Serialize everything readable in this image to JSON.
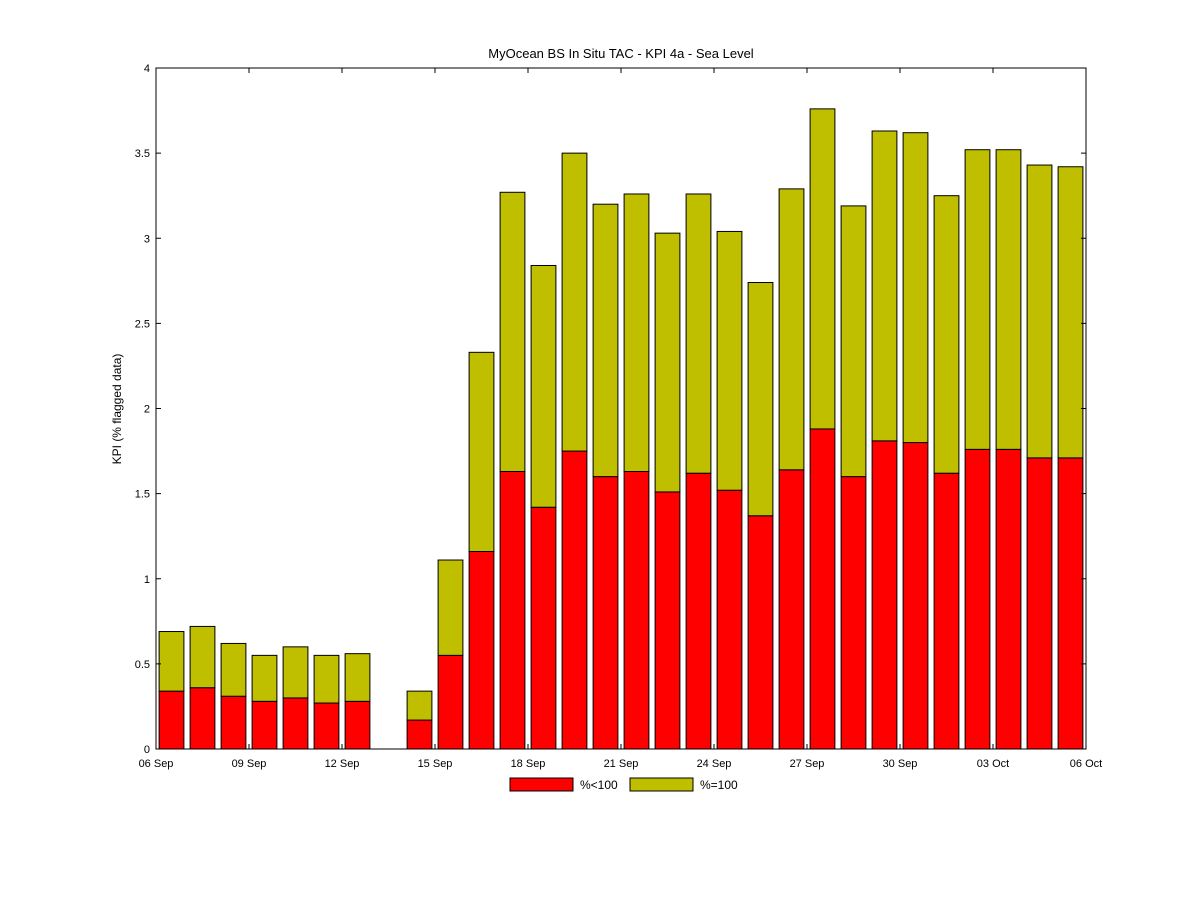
{
  "chart_data": {
    "type": "bar",
    "stacked": true,
    "title": "MyOcean  BS In Situ TAC - KPI 4a - Sea Level",
    "xlabel": "",
    "ylabel": "KPI (% flagged data)",
    "x_range": [
      "2011-09-06",
      "2011-10-06"
    ],
    "ylim": [
      0,
      4
    ],
    "y_ticks": [
      "0",
      "0.5",
      "1",
      "1.5",
      "2",
      "2.5",
      "3",
      "3.5",
      "4"
    ],
    "x_ticks": [
      {
        "date": "2011-09-06",
        "label": "06 Sep"
      },
      {
        "date": "2011-09-09",
        "label": "09 Sep"
      },
      {
        "date": "2011-09-12",
        "label": "12 Sep"
      },
      {
        "date": "2011-09-15",
        "label": "15 Sep"
      },
      {
        "date": "2011-09-18",
        "label": "18 Sep"
      },
      {
        "date": "2011-09-21",
        "label": "21 Sep"
      },
      {
        "date": "2011-09-24",
        "label": "24 Sep"
      },
      {
        "date": "2011-09-27",
        "label": "27 Sep"
      },
      {
        "date": "2011-09-30",
        "label": "30 Sep"
      },
      {
        "date": "2011-10-03",
        "label": "03 Oct"
      },
      {
        "date": "2011-10-06",
        "label": "06 Oct"
      }
    ],
    "grid": false,
    "legend_position": "bottom-center",
    "x": [
      "2011-09-07",
      "2011-09-08",
      "2011-09-09",
      "2011-09-10",
      "2011-09-11",
      "2011-09-12",
      "2011-09-13",
      "2011-09-14",
      "2011-09-15",
      "2011-09-16",
      "2011-09-17",
      "2011-09-18",
      "2011-09-19",
      "2011-09-20",
      "2011-09-21",
      "2011-09-22",
      "2011-09-23",
      "2011-09-24",
      "2011-09-25",
      "2011-09-26",
      "2011-09-27",
      "2011-09-28",
      "2011-09-29",
      "2011-09-30",
      "2011-10-01",
      "2011-10-02",
      "2011-10-03",
      "2011-10-04",
      "2011-10-05",
      "2011-10-06"
    ],
    "series": [
      {
        "name": "%<100",
        "color": "#ff0000",
        "values": [
          0.34,
          0.36,
          0.31,
          0.28,
          0.3,
          0.27,
          0.28,
          null,
          0.17,
          0.55,
          1.16,
          1.63,
          1.42,
          1.75,
          1.6,
          1.63,
          1.51,
          1.62,
          1.52,
          1.37,
          1.64,
          1.88,
          1.6,
          1.81,
          1.8,
          1.62,
          1.76,
          1.76,
          1.71,
          1.71
        ]
      },
      {
        "name": "%=100",
        "color": "#bfbf00",
        "values": [
          0.35,
          0.36,
          0.31,
          0.27,
          0.3,
          0.28,
          0.28,
          null,
          0.17,
          0.56,
          1.17,
          1.64,
          1.42,
          1.75,
          1.6,
          1.63,
          1.52,
          1.64,
          1.52,
          1.37,
          1.65,
          1.88,
          1.59,
          1.82,
          1.82,
          1.63,
          1.76,
          1.76,
          1.72,
          1.71
        ]
      }
    ]
  }
}
